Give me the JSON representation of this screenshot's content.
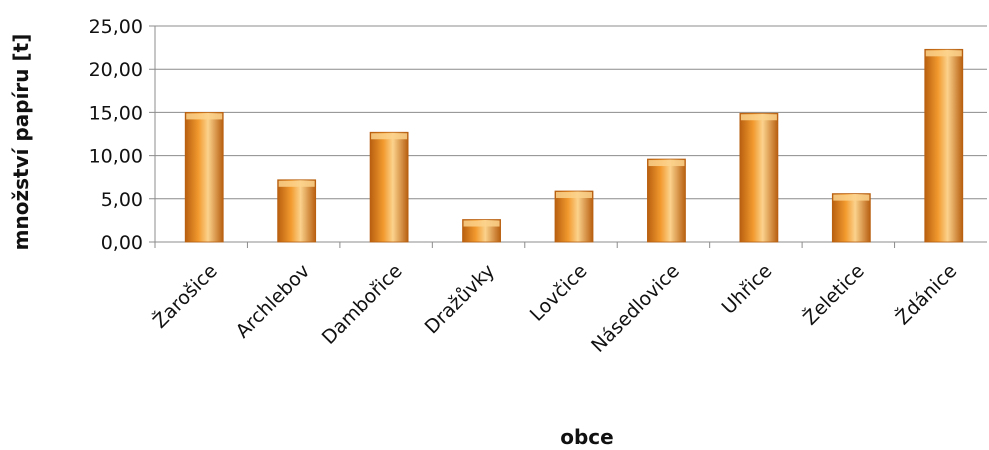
{
  "chart_data": {
    "type": "bar",
    "title": "",
    "xlabel": "obce",
    "ylabel": "množství papíru [t]",
    "categories": [
      "Žarošice",
      "Archlebov",
      "Dambořice",
      "Dražůvky",
      "Lovčice",
      "Násedlovice",
      "Uhřice",
      "Želetice",
      "Ždánice"
    ],
    "values": [
      15.0,
      7.2,
      12.7,
      2.6,
      5.9,
      9.6,
      14.9,
      5.6,
      22.3
    ],
    "ylim": [
      0,
      25
    ],
    "yticks": [
      "0,00",
      "5,00",
      "10,00",
      "15,00",
      "20,00",
      "25,00"
    ],
    "ytick_values": [
      0,
      5,
      10,
      15,
      20,
      25
    ],
    "grid": true,
    "legend": "none",
    "bar_color": "#f29a2e",
    "bar_color_dark": "#b85f10",
    "bar_color_light": "#fbd28c"
  }
}
